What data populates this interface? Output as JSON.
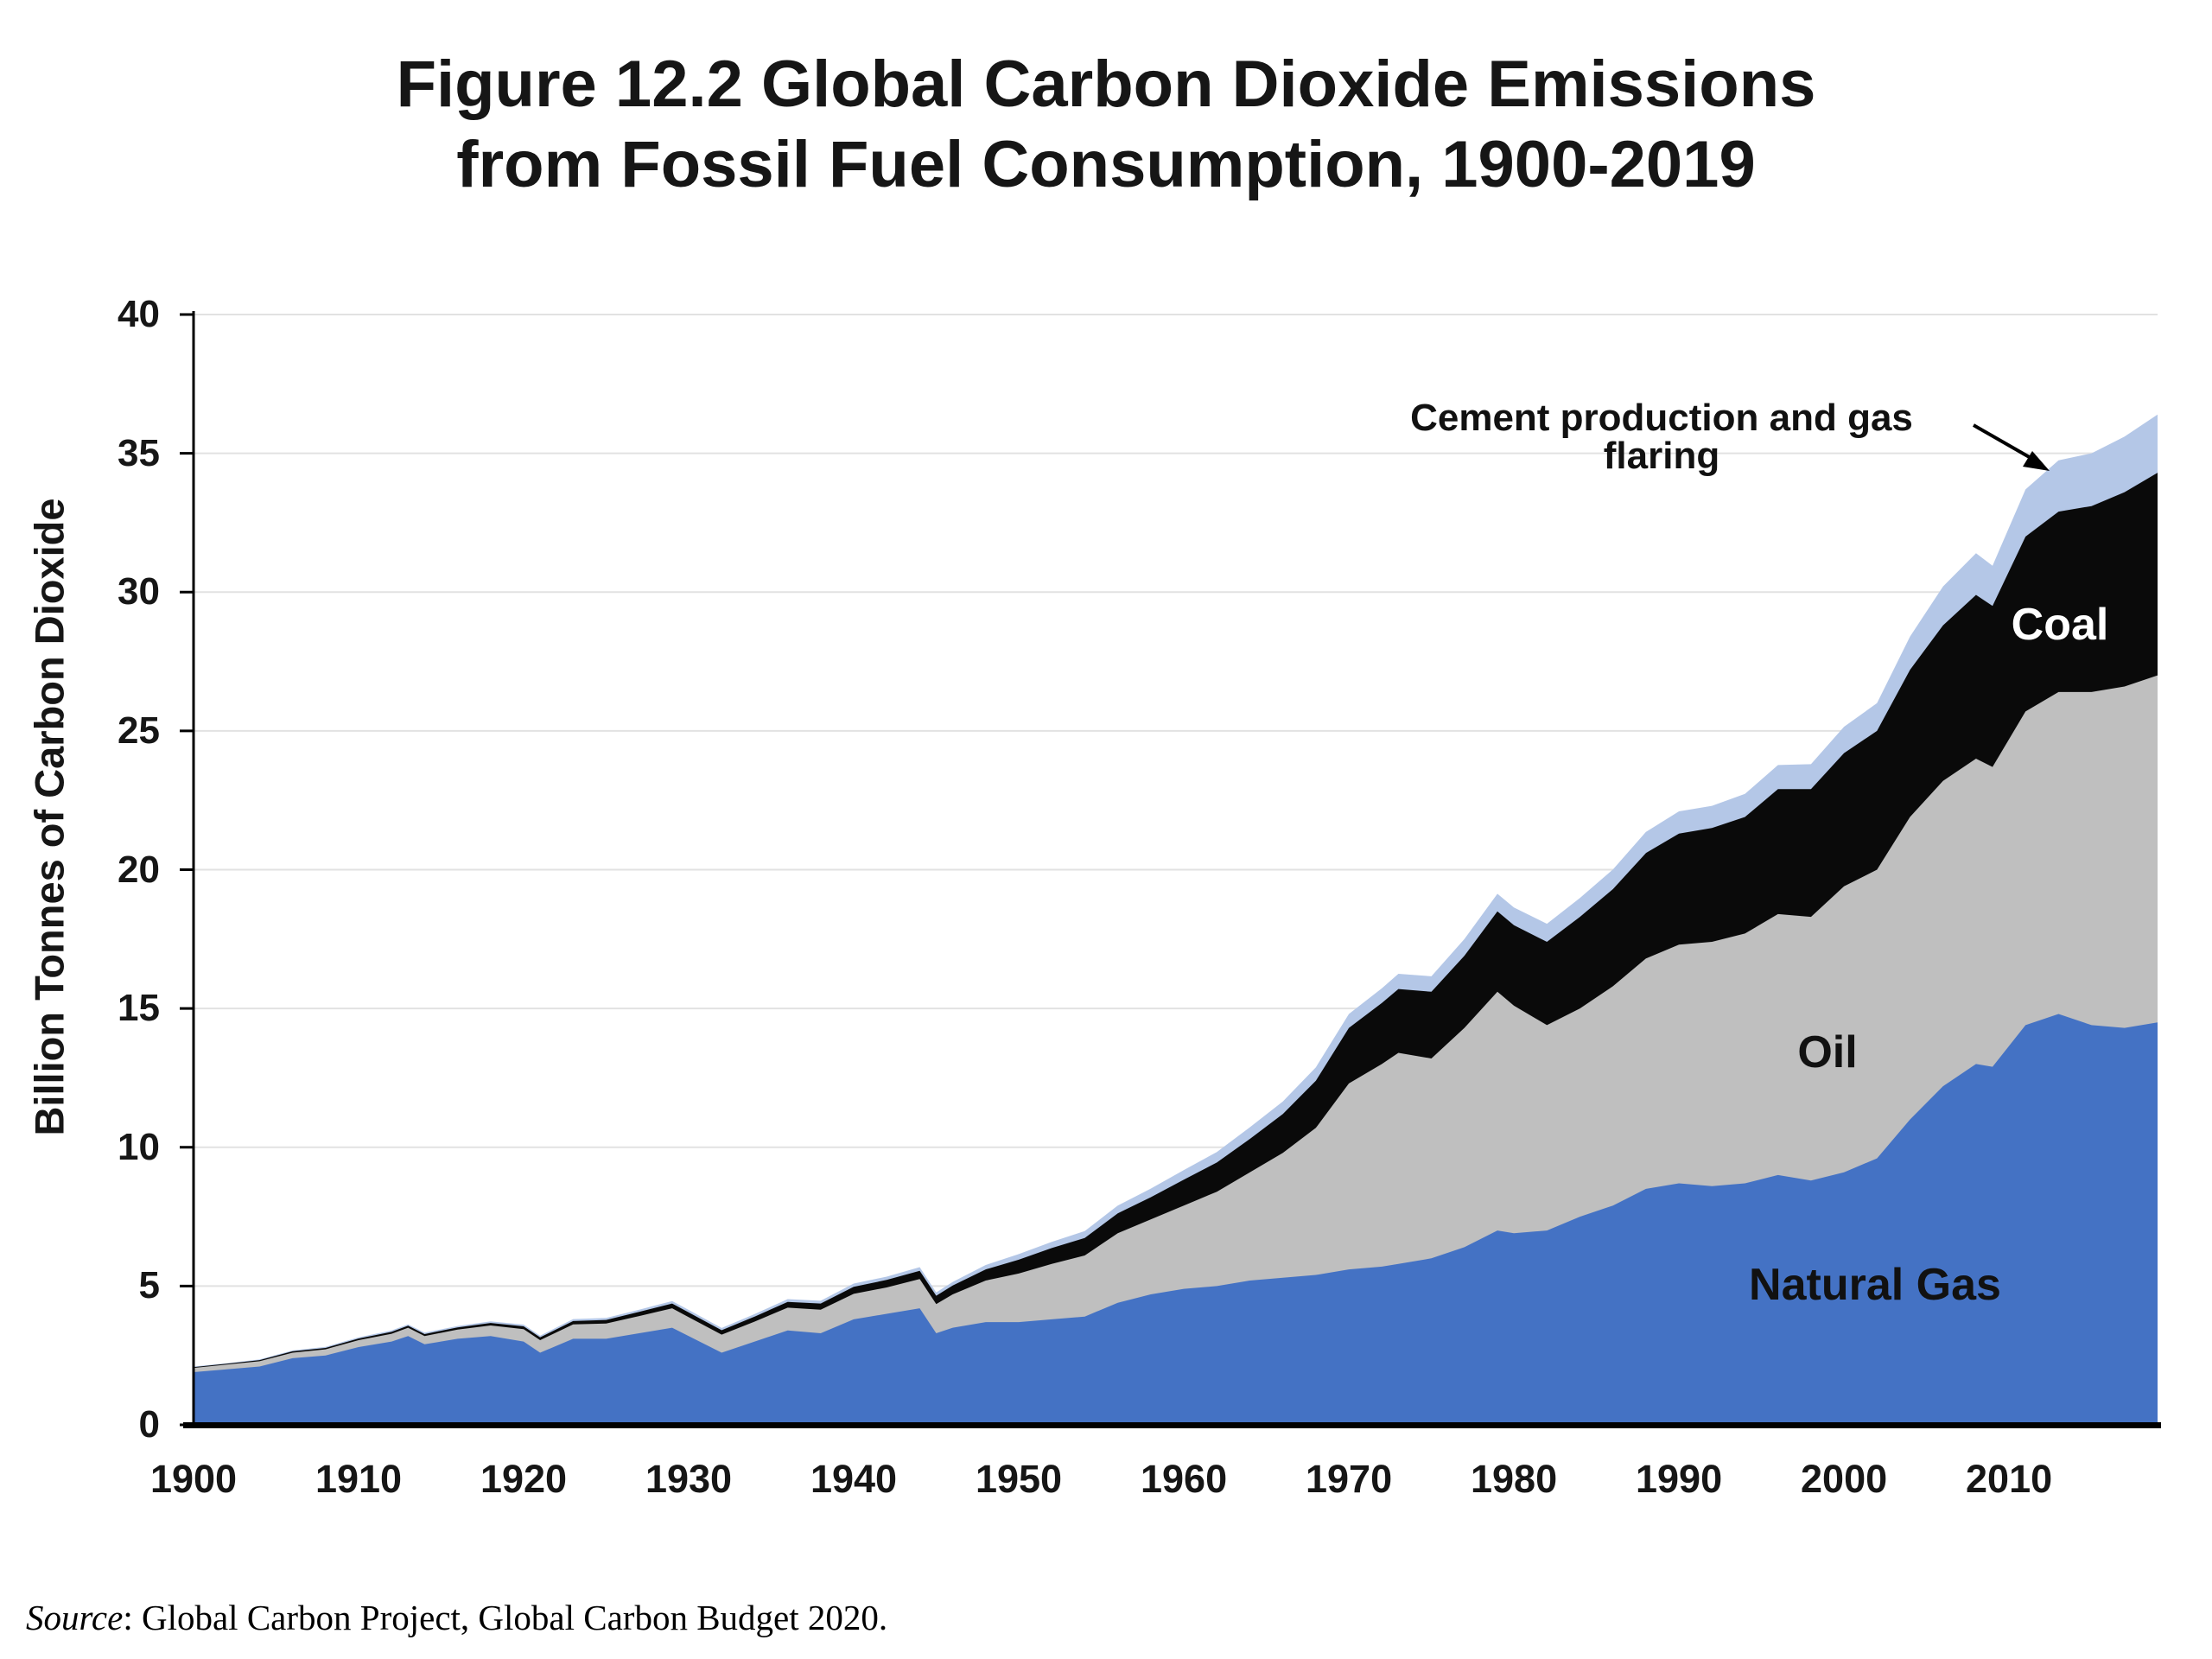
{
  "title": {
    "line1": "Figure 12.2 Global Carbon Dioxide Emissions",
    "line2": "from Fossil Fuel Consumption, 1900-2019"
  },
  "y_axis": {
    "label": "Billion Tonnes of Carbon Dioxide",
    "ticks": [
      0,
      5,
      10,
      15,
      20,
      25,
      30,
      35,
      40
    ]
  },
  "x_axis": {
    "ticks": [
      1900,
      1910,
      1920,
      1930,
      1940,
      1950,
      1960,
      1970,
      1980,
      1990,
      2000,
      2010
    ]
  },
  "annotation": {
    "line1": "Cement production and gas",
    "line2": "flaring"
  },
  "area_labels": {
    "coal": "Coal",
    "oil": "Oil",
    "natural_gas": "Natural Gas"
  },
  "source": {
    "label": "Source",
    "text": ": Global Carbon Project, Global Carbon Budget 2020."
  },
  "colors": {
    "natural_gas_area": "#4472c4",
    "oil_area": "#bfbfbf",
    "coal_area": "#0a0a0a",
    "cement_area": "#b4c7e7",
    "gridline": "#e2e2e2",
    "axis": "#000000",
    "background": "#ffffff"
  },
  "chart_data": {
    "type": "area",
    "stacked": true,
    "title": "Figure 12.2 Global Carbon Dioxide Emissions from Fossil Fuel Consumption, 1900-2019",
    "xlabel": "",
    "ylabel": "Billion Tonnes of Carbon Dioxide",
    "xlim": [
      1900,
      2019
    ],
    "ylim": [
      0,
      40
    ],
    "grid": true,
    "legend": "labels drawn inside plot areas",
    "units": "billion tonnes CO2 per year",
    "x": [
      1900,
      1902,
      1904,
      1906,
      1908,
      1910,
      1912,
      1913,
      1914,
      1916,
      1918,
      1920,
      1921,
      1923,
      1925,
      1927,
      1929,
      1930,
      1932,
      1934,
      1936,
      1938,
      1940,
      1942,
      1944,
      1945,
      1946,
      1948,
      1950,
      1952,
      1954,
      1956,
      1958,
      1960,
      1962,
      1964,
      1966,
      1968,
      1970,
      1972,
      1973,
      1975,
      1977,
      1979,
      1980,
      1982,
      1984,
      1986,
      1988,
      1990,
      1992,
      1994,
      1996,
      1998,
      2000,
      2002,
      2004,
      2006,
      2008,
      2009,
      2011,
      2013,
      2015,
      2017,
      2019
    ],
    "series": [
      {
        "name": "Natural Gas",
        "color": "#4472c4",
        "values": [
          1.9,
          2.0,
          2.1,
          2.4,
          2.5,
          2.8,
          3.0,
          3.2,
          2.9,
          3.1,
          3.2,
          3.0,
          2.6,
          3.1,
          3.1,
          3.3,
          3.5,
          3.2,
          2.6,
          3.0,
          3.4,
          3.3,
          3.8,
          4.0,
          4.2,
          3.3,
          3.5,
          3.7,
          3.7,
          3.8,
          3.9,
          4.4,
          4.7,
          4.9,
          5.0,
          5.2,
          5.3,
          5.4,
          5.6,
          5.7,
          5.8,
          6.0,
          6.4,
          7.0,
          6.9,
          7.0,
          7.5,
          7.9,
          8.5,
          8.7,
          8.6,
          8.7,
          9.0,
          8.8,
          9.1,
          9.6,
          11.0,
          12.2,
          13.0,
          12.9,
          14.4,
          14.8,
          14.4,
          14.3,
          14.5
        ]
      },
      {
        "name": "Oil",
        "color": "#bfbfbf",
        "values": [
          0.15,
          0.17,
          0.19,
          0.2,
          0.22,
          0.25,
          0.28,
          0.3,
          0.3,
          0.33,
          0.38,
          0.45,
          0.45,
          0.52,
          0.55,
          0.62,
          0.7,
          0.68,
          0.65,
          0.72,
          0.82,
          0.85,
          0.92,
          0.95,
          1.05,
          1.05,
          1.2,
          1.5,
          1.75,
          2.0,
          2.2,
          2.5,
          2.7,
          3.0,
          3.4,
          3.9,
          4.5,
          5.3,
          6.7,
          7.3,
          7.6,
          7.2,
          7.9,
          8.6,
          8.2,
          7.4,
          7.5,
          7.9,
          8.3,
          8.6,
          8.8,
          9.0,
          9.4,
          9.5,
          10.3,
          10.4,
          10.9,
          11.0,
          11.0,
          10.8,
          11.3,
          11.6,
          12.0,
          12.3,
          12.5
        ]
      },
      {
        "name": "Coal",
        "color": "#0a0a0a",
        "values": [
          0.03,
          0.03,
          0.04,
          0.05,
          0.05,
          0.06,
          0.07,
          0.07,
          0.07,
          0.08,
          0.09,
          0.1,
          0.1,
          0.12,
          0.13,
          0.15,
          0.17,
          0.17,
          0.16,
          0.18,
          0.21,
          0.22,
          0.25,
          0.27,
          0.3,
          0.3,
          0.32,
          0.4,
          0.5,
          0.57,
          0.63,
          0.72,
          0.8,
          0.93,
          1.05,
          1.2,
          1.4,
          1.7,
          2.0,
          2.2,
          2.3,
          2.4,
          2.6,
          2.9,
          2.9,
          3.0,
          3.3,
          3.5,
          3.8,
          4.0,
          4.1,
          4.2,
          4.5,
          4.6,
          4.8,
          5.0,
          5.3,
          5.6,
          5.9,
          5.8,
          6.3,
          6.5,
          6.7,
          7.0,
          7.3
        ]
      },
      {
        "name": "Cement production and gas flaring",
        "color": "#b4c7e7",
        "values": [
          0.02,
          0.02,
          0.03,
          0.03,
          0.04,
          0.04,
          0.05,
          0.05,
          0.05,
          0.05,
          0.06,
          0.06,
          0.06,
          0.07,
          0.07,
          0.08,
          0.09,
          0.09,
          0.08,
          0.09,
          0.1,
          0.1,
          0.12,
          0.12,
          0.13,
          0.12,
          0.13,
          0.16,
          0.2,
          0.22,
          0.25,
          0.28,
          0.31,
          0.35,
          0.38,
          0.42,
          0.45,
          0.48,
          0.5,
          0.53,
          0.55,
          0.56,
          0.6,
          0.63,
          0.64,
          0.65,
          0.68,
          0.71,
          0.76,
          0.8,
          0.8,
          0.83,
          0.87,
          0.9,
          0.95,
          1.0,
          1.2,
          1.4,
          1.5,
          1.45,
          1.7,
          1.85,
          1.9,
          2.0,
          2.1
        ]
      }
    ]
  }
}
